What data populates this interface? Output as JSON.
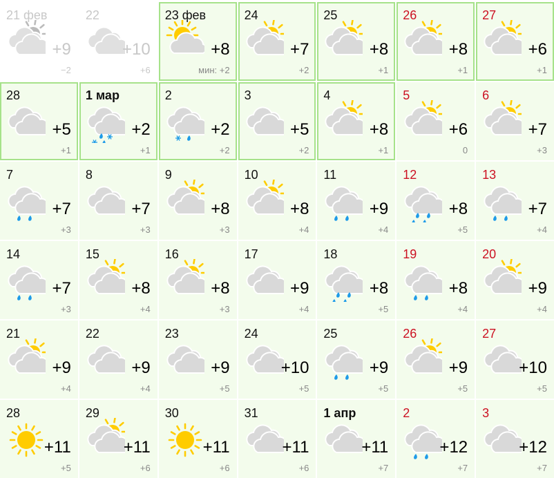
{
  "colors": {
    "sun": "#ffcc00",
    "cloud": "#d9d9d9",
    "past_cloud": "#e0e0e0",
    "drop": "#1e9be8",
    "weekend": "#cc1122",
    "border": "#a6e28a",
    "background": "#f3fcec"
  },
  "days": [
    {
      "date": "21 фев",
      "icon": "partly-cloudy",
      "temp": "+9",
      "min": "−2",
      "past": true
    },
    {
      "date": "22",
      "icon": "cloudy",
      "temp": "+10",
      "min": "+6",
      "past": true
    },
    {
      "date": "23 фев",
      "icon": "sun-over-cloud",
      "temp": "+8",
      "min": "мин: +2",
      "bordered": true
    },
    {
      "date": "24",
      "icon": "partly-cloudy",
      "temp": "+7",
      "min": "+2",
      "bordered": true
    },
    {
      "date": "25",
      "icon": "partly-cloudy",
      "temp": "+8",
      "min": "+1",
      "bordered": true
    },
    {
      "date": "26",
      "icon": "partly-cloudy",
      "temp": "+8",
      "min": "+1",
      "bordered": true,
      "weekend": true
    },
    {
      "date": "27",
      "icon": "partly-cloudy",
      "temp": "+6",
      "min": "+1",
      "bordered": true,
      "weekend": true
    },
    {
      "date": "28",
      "icon": "cloudy",
      "temp": "+5",
      "min": "+1",
      "bordered": true
    },
    {
      "date": "1 мар",
      "icon": "sleet",
      "temp": "+2",
      "min": "+1",
      "bordered": true,
      "bold": true
    },
    {
      "date": "2",
      "icon": "light-sleet",
      "temp": "+2",
      "min": "+2",
      "bordered": true
    },
    {
      "date": "3",
      "icon": "cloudy",
      "temp": "+5",
      "min": "+2",
      "bordered": true
    },
    {
      "date": "4",
      "icon": "partly-cloudy",
      "temp": "+8",
      "min": "+1",
      "bordered": true
    },
    {
      "date": "5",
      "icon": "partly-cloudy",
      "temp": "+6",
      "min": "0",
      "weekend": true
    },
    {
      "date": "6",
      "icon": "partly-cloudy",
      "temp": "+7",
      "min": "+3",
      "weekend": true
    },
    {
      "date": "7",
      "icon": "light-rain",
      "temp": "+7",
      "min": "+3"
    },
    {
      "date": "8",
      "icon": "cloudy",
      "temp": "+7",
      "min": "+3"
    },
    {
      "date": "9",
      "icon": "partly-cloudy",
      "temp": "+8",
      "min": "+3"
    },
    {
      "date": "10",
      "icon": "partly-cloudy",
      "temp": "+8",
      "min": "+4"
    },
    {
      "date": "11",
      "icon": "light-rain",
      "temp": "+9",
      "min": "+4"
    },
    {
      "date": "12",
      "icon": "rain",
      "temp": "+8",
      "min": "+5",
      "weekend": true
    },
    {
      "date": "13",
      "icon": "light-rain",
      "temp": "+7",
      "min": "+4",
      "weekend": true
    },
    {
      "date": "14",
      "icon": "light-rain",
      "temp": "+7",
      "min": "+3"
    },
    {
      "date": "15",
      "icon": "partly-cloudy",
      "temp": "+8",
      "min": "+4"
    },
    {
      "date": "16",
      "icon": "partly-cloudy",
      "temp": "+8",
      "min": "+3"
    },
    {
      "date": "17",
      "icon": "cloudy",
      "temp": "+9",
      "min": "+4"
    },
    {
      "date": "18",
      "icon": "rain",
      "temp": "+8",
      "min": "+5"
    },
    {
      "date": "19",
      "icon": "light-rain",
      "temp": "+8",
      "min": "+4",
      "weekend": true
    },
    {
      "date": "20",
      "icon": "partly-cloudy",
      "temp": "+9",
      "min": "+4",
      "weekend": true
    },
    {
      "date": "21",
      "icon": "partly-cloudy",
      "temp": "+9",
      "min": "+4"
    },
    {
      "date": "22",
      "icon": "cloudy",
      "temp": "+9",
      "min": "+4"
    },
    {
      "date": "23",
      "icon": "cloudy",
      "temp": "+9",
      "min": "+5"
    },
    {
      "date": "24",
      "icon": "cloudy",
      "temp": "+10",
      "min": "+5"
    },
    {
      "date": "25",
      "icon": "light-rain",
      "temp": "+9",
      "min": "+5"
    },
    {
      "date": "26",
      "icon": "partly-cloudy",
      "temp": "+9",
      "min": "+5",
      "weekend": true
    },
    {
      "date": "27",
      "icon": "cloudy",
      "temp": "+10",
      "min": "+5",
      "weekend": true
    },
    {
      "date": "28",
      "icon": "sunny",
      "temp": "+11",
      "min": "+5"
    },
    {
      "date": "29",
      "icon": "partly-cloudy",
      "temp": "+11",
      "min": "+6"
    },
    {
      "date": "30",
      "icon": "sunny",
      "temp": "+11",
      "min": "+6"
    },
    {
      "date": "31",
      "icon": "cloudy",
      "temp": "+11",
      "min": "+6"
    },
    {
      "date": "1 апр",
      "icon": "cloudy",
      "temp": "+11",
      "min": "+7",
      "bold": true
    },
    {
      "date": "2",
      "icon": "light-rain",
      "temp": "+12",
      "min": "+7",
      "weekend": true
    },
    {
      "date": "3",
      "icon": "cloudy",
      "temp": "+12",
      "min": "+7",
      "weekend": true
    }
  ]
}
